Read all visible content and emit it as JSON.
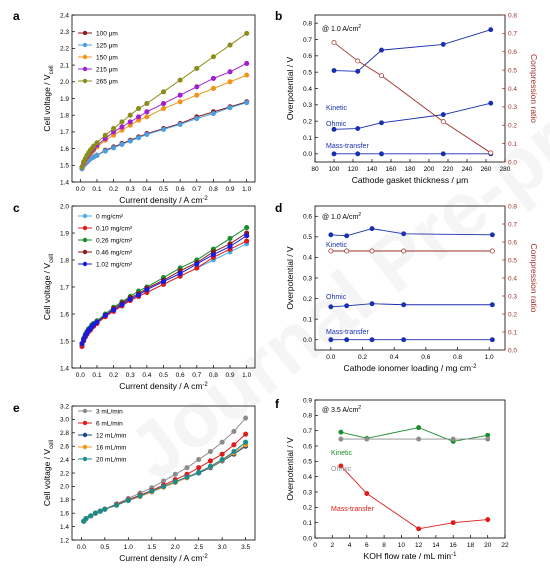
{
  "watermark": "Journal Pre-proof",
  "chart_data": [
    {
      "panel": "a",
      "type": "line",
      "xlabel": "Current density / A cm",
      "xlabel_sup": "-2",
      "ylabel": "Cell voltage / V",
      "ylabel_sub": "cell",
      "xlim": [
        -0.05,
        1.05
      ],
      "ylim": [
        1.4,
        2.4
      ],
      "xticks": [
        0.0,
        0.1,
        0.2,
        0.3,
        0.4,
        0.5,
        0.6,
        0.7,
        0.8,
        0.9,
        1.0
      ],
      "xtick_labels": [
        "0.0",
        "0.1",
        "0.2",
        "0.3",
        "0.4",
        "0.5",
        "0.6",
        "0.7",
        "0.8",
        "0.9",
        "1.0"
      ],
      "yticks": [
        1.4,
        1.5,
        1.6,
        1.7,
        1.8,
        1.9,
        2.0,
        2.1,
        2.2,
        2.3,
        2.4
      ],
      "ytick_labels": [
        "1.4",
        "1.5",
        "1.6",
        "1.7",
        "1.8",
        "1.9",
        "2.0",
        "2.1",
        "2.2",
        "2.3",
        "2.4"
      ],
      "legend_position": "top-left",
      "x": [
        0.01,
        0.02,
        0.03,
        0.04,
        0.05,
        0.06,
        0.07,
        0.08,
        0.1,
        0.15,
        0.2,
        0.25,
        0.3,
        0.35,
        0.4,
        0.5,
        0.6,
        0.7,
        0.8,
        0.9,
        1.0
      ],
      "series": [
        {
          "name": "100 μm",
          "color": "#8B1A1A",
          "values": [
            1.48,
            1.5,
            1.51,
            1.52,
            1.53,
            1.54,
            1.545,
            1.55,
            1.56,
            1.59,
            1.61,
            1.63,
            1.65,
            1.67,
            1.69,
            1.72,
            1.75,
            1.79,
            1.82,
            1.85,
            1.88
          ]
        },
        {
          "name": "125 μm",
          "color": "#4A9FE0",
          "values": [
            1.48,
            1.5,
            1.51,
            1.52,
            1.53,
            1.54,
            1.545,
            1.55,
            1.56,
            1.585,
            1.605,
            1.625,
            1.645,
            1.665,
            1.685,
            1.715,
            1.745,
            1.78,
            1.81,
            1.845,
            1.875
          ]
        },
        {
          "name": "150 μm",
          "color": "#F0941A",
          "values": [
            1.49,
            1.51,
            1.53,
            1.545,
            1.56,
            1.57,
            1.58,
            1.59,
            1.61,
            1.65,
            1.68,
            1.71,
            1.74,
            1.77,
            1.79,
            1.84,
            1.88,
            1.92,
            1.96,
            2.0,
            2.04
          ]
        },
        {
          "name": "215 μm",
          "color": "#A020D0",
          "values": [
            1.49,
            1.515,
            1.535,
            1.55,
            1.565,
            1.58,
            1.59,
            1.6,
            1.62,
            1.66,
            1.7,
            1.73,
            1.76,
            1.79,
            1.82,
            1.87,
            1.92,
            1.97,
            2.02,
            2.06,
            2.11
          ]
        },
        {
          "name": "265 μm",
          "color": "#8C8C1A",
          "values": [
            1.49,
            1.52,
            1.54,
            1.56,
            1.575,
            1.59,
            1.6,
            1.615,
            1.635,
            1.68,
            1.72,
            1.76,
            1.8,
            1.84,
            1.87,
            1.94,
            2.01,
            2.08,
            2.15,
            2.22,
            2.29
          ]
        }
      ]
    },
    {
      "panel": "b",
      "type": "line",
      "annotation_prefix": "@ 1.0 A/cm",
      "annotation_sup": "2",
      "xlabel": "Cathode gasket thickness / μm",
      "ylabel": "Overpotential / V",
      "y2label": "Compression ratio",
      "xlim": [
        80,
        280
      ],
      "ylim": [
        -0.05,
        0.85
      ],
      "y2lim": [
        0.0,
        0.8
      ],
      "xticks": [
        80,
        100,
        120,
        140,
        160,
        180,
        200,
        220,
        240,
        260,
        280
      ],
      "xtick_labels": [
        "80",
        "100",
        "120",
        "140",
        "160",
        "180",
        "200",
        "220",
        "240",
        "260",
        "280"
      ],
      "yticks": [
        0.0,
        0.1,
        0.2,
        0.3,
        0.4,
        0.5,
        0.6,
        0.7,
        0.8
      ],
      "ytick_labels": [
        "0.0",
        "0.1",
        "0.2",
        "0.3",
        "0.4",
        "0.5",
        "0.6",
        "0.7",
        "0.8"
      ],
      "y2ticks": [
        0.0,
        0.1,
        0.2,
        0.3,
        0.4,
        0.5,
        0.6,
        0.7,
        0.8
      ],
      "y2tick_labels": [
        "0.0",
        "0.1",
        "0.2",
        "0.3",
        "0.4",
        "0.5",
        "0.6",
        "0.7",
        "0.8"
      ],
      "x": [
        100,
        125,
        150,
        215,
        265
      ],
      "series": [
        {
          "name": "Kinetic",
          "color": "#1A2FB0",
          "axis": "left",
          "marker": "filled",
          "values": [
            0.51,
            0.505,
            0.635,
            0.67,
            0.76
          ]
        },
        {
          "name": "Ohmic",
          "color": "#1A2FB0",
          "axis": "left",
          "marker": "filled",
          "values": [
            0.15,
            0.155,
            0.19,
            0.24,
            0.31
          ]
        },
        {
          "name": "Mass-transfer",
          "color": "#1A2FB0",
          "axis": "left",
          "marker": "filled",
          "values": [
            0.0,
            0.0,
            0.0,
            0.0,
            0.0
          ]
        },
        {
          "name": "",
          "color": "#A0302A",
          "axis": "right",
          "marker": "open",
          "values": [
            0.65,
            0.55,
            0.47,
            0.22,
            0.05
          ]
        }
      ]
    },
    {
      "panel": "c",
      "type": "line",
      "xlabel": "Current density / A cm",
      "xlabel_sup": "-2",
      "ylabel": "Cell voltage / V",
      "ylabel_sub": "cell",
      "xlim": [
        -0.05,
        1.05
      ],
      "ylim": [
        1.4,
        2.0
      ],
      "xticks": [
        0.0,
        0.1,
        0.2,
        0.3,
        0.4,
        0.5,
        0.6,
        0.7,
        0.8,
        0.9,
        1.0
      ],
      "xtick_labels": [
        "0.0",
        "0.1",
        "0.2",
        "0.3",
        "0.4",
        "0.5",
        "0.6",
        "0.7",
        "0.8",
        "0.9",
        "1.0"
      ],
      "yticks": [
        1.4,
        1.5,
        1.6,
        1.7,
        1.8,
        1.9,
        2.0
      ],
      "ytick_labels": [
        "1.4",
        "1.5",
        "1.6",
        "1.7",
        "1.8",
        "1.9",
        "2.0"
      ],
      "legend_position": "top-left",
      "x": [
        0.01,
        0.02,
        0.03,
        0.04,
        0.05,
        0.06,
        0.07,
        0.08,
        0.1,
        0.15,
        0.2,
        0.25,
        0.3,
        0.35,
        0.4,
        0.5,
        0.6,
        0.7,
        0.8,
        0.9,
        1.0
      ],
      "series": [
        {
          "name": "0 mg/cm²",
          "color": "#4AB0E8",
          "values": [
            1.48,
            1.5,
            1.515,
            1.525,
            1.535,
            1.54,
            1.55,
            1.555,
            1.565,
            1.59,
            1.61,
            1.63,
            1.65,
            1.665,
            1.68,
            1.71,
            1.74,
            1.77,
            1.8,
            1.83,
            1.86
          ]
        },
        {
          "name": "0.10 mg/cm²",
          "color": "#E01A1A",
          "values": [
            1.48,
            1.5,
            1.515,
            1.525,
            1.535,
            1.54,
            1.55,
            1.555,
            1.565,
            1.59,
            1.61,
            1.63,
            1.65,
            1.665,
            1.68,
            1.71,
            1.74,
            1.77,
            1.81,
            1.84,
            1.87
          ]
        },
        {
          "name": "0.26 mg/cm²",
          "color": "#1A8C2A",
          "values": [
            1.49,
            1.51,
            1.525,
            1.535,
            1.545,
            1.55,
            1.56,
            1.565,
            1.575,
            1.6,
            1.625,
            1.645,
            1.665,
            1.685,
            1.7,
            1.735,
            1.77,
            1.8,
            1.84,
            1.88,
            1.92
          ]
        },
        {
          "name": "0.46 mg/cm²",
          "color": "#8B1A1A",
          "values": [
            1.49,
            1.505,
            1.52,
            1.53,
            1.54,
            1.545,
            1.555,
            1.56,
            1.57,
            1.595,
            1.62,
            1.64,
            1.66,
            1.675,
            1.695,
            1.725,
            1.76,
            1.79,
            1.83,
            1.86,
            1.9
          ]
        },
        {
          "name": "1.02 mg/cm²",
          "color": "#1A1AE0",
          "values": [
            1.49,
            1.505,
            1.52,
            1.53,
            1.54,
            1.545,
            1.555,
            1.56,
            1.57,
            1.595,
            1.615,
            1.635,
            1.655,
            1.67,
            1.69,
            1.72,
            1.75,
            1.785,
            1.82,
            1.85,
            1.89
          ]
        }
      ]
    },
    {
      "panel": "d",
      "type": "line",
      "annotation_prefix": "@ 1.0 A/cm",
      "annotation_sup": "2",
      "xlabel": "Cathode ionomer loading / mg cm",
      "xlabel_sup": "-2",
      "ylabel": "Overpotential / V",
      "y2label": "Compression ratio",
      "xlim": [
        -0.1,
        1.1
      ],
      "ylim": [
        -0.05,
        0.65
      ],
      "y2lim": [
        0.0,
        0.8
      ],
      "xticks": [
        0.0,
        0.2,
        0.4,
        0.6,
        0.8,
        1.0
      ],
      "xtick_labels": [
        "0.0",
        "0.2",
        "0.4",
        "0.6",
        "0.8",
        "1.0"
      ],
      "yticks": [
        0.0,
        0.1,
        0.2,
        0.3,
        0.4,
        0.5,
        0.6
      ],
      "ytick_labels": [
        "0.0",
        "0.1",
        "0.2",
        "0.3",
        "0.4",
        "0.5",
        "0.6"
      ],
      "y2ticks": [
        0.0,
        0.1,
        0.2,
        0.3,
        0.4,
        0.5,
        0.6,
        0.7,
        0.8
      ],
      "y2tick_labels": [
        "0.0",
        "0.1",
        "0.2",
        "0.3",
        "0.4",
        "0.5",
        "0.6",
        "0.7",
        "0.8"
      ],
      "x": [
        0.0,
        0.1,
        0.26,
        0.46,
        1.02
      ],
      "series": [
        {
          "name": "Kinetic",
          "color": "#1A2FB0",
          "axis": "left",
          "marker": "filled",
          "values": [
            0.51,
            0.505,
            0.54,
            0.515,
            0.51
          ]
        },
        {
          "name": "Ohmic",
          "color": "#1A2FB0",
          "axis": "left",
          "marker": "filled",
          "values": [
            0.16,
            0.165,
            0.175,
            0.17,
            0.17
          ]
        },
        {
          "name": "Mass-transfer",
          "color": "#1A2FB0",
          "axis": "left",
          "marker": "filled",
          "values": [
            0.0,
            0.0,
            0.0,
            0.0,
            0.0
          ]
        },
        {
          "name": "",
          "color": "#A0302A",
          "axis": "right",
          "marker": "open",
          "values": [
            0.55,
            0.55,
            0.55,
            0.55,
            0.55
          ]
        }
      ]
    },
    {
      "panel": "e",
      "type": "line",
      "xlabel": "Current density / A cm",
      "xlabel_sup": "-2",
      "ylabel": "Cell voltage / V",
      "ylabel_sub": "cell",
      "xlim": [
        -0.2,
        3.7
      ],
      "ylim": [
        1.2,
        3.2
      ],
      "xticks": [
        0.0,
        0.5,
        1.0,
        1.5,
        2.0,
        2.5,
        3.0,
        3.5
      ],
      "xtick_labels": [
        "0.0",
        "0.5",
        "1.0",
        "1.5",
        "2.0",
        "2.5",
        "3.0",
        "3.5"
      ],
      "yticks": [
        1.2,
        1.4,
        1.6,
        1.8,
        2.0,
        2.2,
        2.4,
        2.6,
        2.8,
        3.0,
        3.2
      ],
      "ytick_labels": [
        "1.2",
        "1.4",
        "1.6",
        "1.8",
        "2.0",
        "2.2",
        "2.4",
        "2.6",
        "2.8",
        "3.0",
        "3.2"
      ],
      "legend_position": "top-left",
      "x": [
        0.05,
        0.1,
        0.2,
        0.3,
        0.4,
        0.5,
        0.75,
        1.0,
        1.25,
        1.5,
        1.75,
        2.0,
        2.25,
        2.5,
        2.75,
        3.0,
        3.25,
        3.5
      ],
      "series": [
        {
          "name": "3 mL/min",
          "color": "#8C8C8C",
          "values": [
            1.48,
            1.52,
            1.56,
            1.6,
            1.63,
            1.66,
            1.74,
            1.82,
            1.9,
            1.98,
            2.08,
            2.18,
            2.28,
            2.4,
            2.52,
            2.66,
            2.82,
            3.02
          ]
        },
        {
          "name": "6 mL/min",
          "color": "#E01A1A",
          "values": [
            1.48,
            1.52,
            1.56,
            1.6,
            1.63,
            1.66,
            1.73,
            1.8,
            1.87,
            1.94,
            2.02,
            2.1,
            2.18,
            2.28,
            2.38,
            2.48,
            2.62,
            2.78
          ]
        },
        {
          "name": "12 mL/min",
          "color": "#1A4A8C",
          "values": [
            1.48,
            1.52,
            1.56,
            1.6,
            1.63,
            1.66,
            1.72,
            1.79,
            1.85,
            1.92,
            1.99,
            2.06,
            2.13,
            2.2,
            2.28,
            2.38,
            2.48,
            2.6
          ]
        },
        {
          "name": "16 mL/min",
          "color": "#F0941A",
          "values": [
            1.48,
            1.52,
            1.56,
            1.6,
            1.63,
            1.66,
            1.72,
            1.79,
            1.85,
            1.92,
            1.99,
            2.06,
            2.13,
            2.21,
            2.29,
            2.39,
            2.5,
            2.62
          ]
        },
        {
          "name": "20 mL/min",
          "color": "#1A8C8C",
          "values": [
            1.48,
            1.52,
            1.56,
            1.6,
            1.63,
            1.66,
            1.72,
            1.79,
            1.86,
            1.93,
            2.0,
            2.07,
            2.14,
            2.21,
            2.3,
            2.4,
            2.52,
            2.66
          ]
        }
      ]
    },
    {
      "panel": "f",
      "type": "line",
      "annotation_prefix": "@ 3.5 A/cm",
      "annotation_sup": "2",
      "xlabel": "KOH flow rate / mL min",
      "xlabel_sup": "-1",
      "ylabel": "Overpotential / V",
      "xlim": [
        0,
        22
      ],
      "ylim": [
        0.0,
        0.9
      ],
      "xticks": [
        0,
        2,
        4,
        6,
        8,
        10,
        12,
        14,
        16,
        18,
        20,
        22
      ],
      "xtick_labels": [
        "0",
        "2",
        "4",
        "6",
        "8",
        "10",
        "12",
        "14",
        "16",
        "18",
        "20",
        "22"
      ],
      "yticks": [
        0.0,
        0.1,
        0.2,
        0.3,
        0.4,
        0.5,
        0.6,
        0.7,
        0.8,
        0.9
      ],
      "ytick_labels": [
        "0.0",
        "0.1",
        "0.2",
        "0.3",
        "0.4",
        "0.5",
        "0.6",
        "0.7",
        "0.8",
        "0.9"
      ],
      "x": [
        3,
        6,
        12,
        16,
        20
      ],
      "series": [
        {
          "name": "Kinetic",
          "color": "#1A8C2A",
          "values": [
            0.69,
            0.65,
            0.72,
            0.63,
            0.67
          ]
        },
        {
          "name": "Ohmic",
          "color": "#8C8C8C",
          "values": [
            0.645,
            0.645,
            0.645,
            0.645,
            0.645
          ]
        },
        {
          "name": "Mass-transfer",
          "color": "#E01A1A",
          "values": [
            0.47,
            0.29,
            0.06,
            0.1,
            0.12
          ]
        }
      ]
    }
  ]
}
